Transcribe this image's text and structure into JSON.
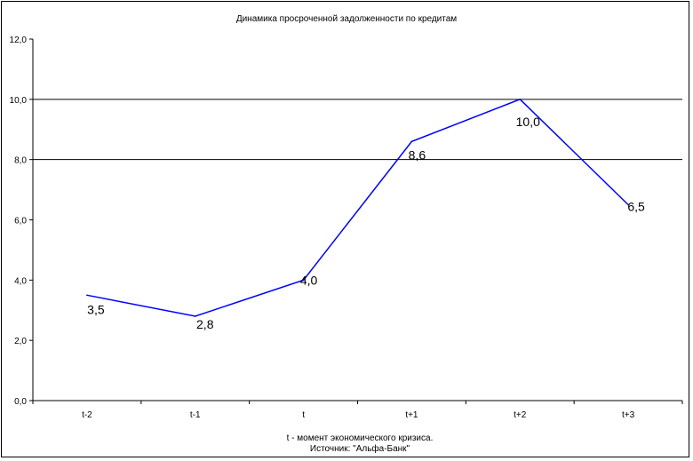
{
  "chart_data": {
    "type": "line",
    "title": "Динамика просроченной задолженности по кредитам",
    "categories": [
      "t-2",
      "t-1",
      "t",
      "t+1",
      "t+2",
      "t+3"
    ],
    "series": [
      {
        "values": [
          3.5,
          2.8,
          4.0,
          8.6,
          10.0,
          6.5
        ],
        "color": "#0000ff"
      }
    ],
    "data_labels": [
      "3,5",
      "2,8",
      "4,0",
      "8,6",
      "10,0",
      "6,5"
    ],
    "y_tick_labels": [
      "0,0",
      "2,0",
      "4,0",
      "6,0",
      "8,0",
      "10,0",
      "12,0"
    ],
    "ylim": [
      0,
      12
    ],
    "y_gridlines": [
      10,
      8
    ],
    "grid": true,
    "legend": false
  },
  "notes": {
    "line1": "t - момент экономического кризиса.",
    "line2": "Источник: \"Альфа-Банк\""
  }
}
